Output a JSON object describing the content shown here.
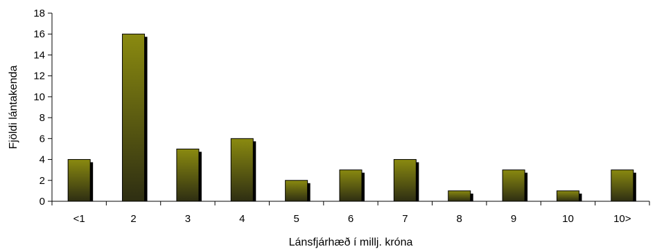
{
  "chart_data": {
    "type": "bar",
    "categories": [
      "<1",
      "2",
      "3",
      "4",
      "5",
      "6",
      "7",
      "8",
      "9",
      "10",
      "10>"
    ],
    "values": [
      4,
      16,
      5,
      6,
      2,
      3,
      4,
      1,
      3,
      1,
      3
    ],
    "xlabel": "Lánsfjárhæð í millj. króna",
    "ylabel": "Fjöldi lántakenda",
    "ylim": [
      0,
      18
    ],
    "yticks": [
      0,
      2,
      4,
      6,
      8,
      10,
      12,
      14,
      16,
      18
    ],
    "grid": false,
    "legend": "none",
    "colors": {
      "bar_top": "#8a8a10",
      "bar_bottom": "#2e2e12",
      "bar_edge": "#000000",
      "shadow": "#000000",
      "axis": "#000000"
    }
  }
}
